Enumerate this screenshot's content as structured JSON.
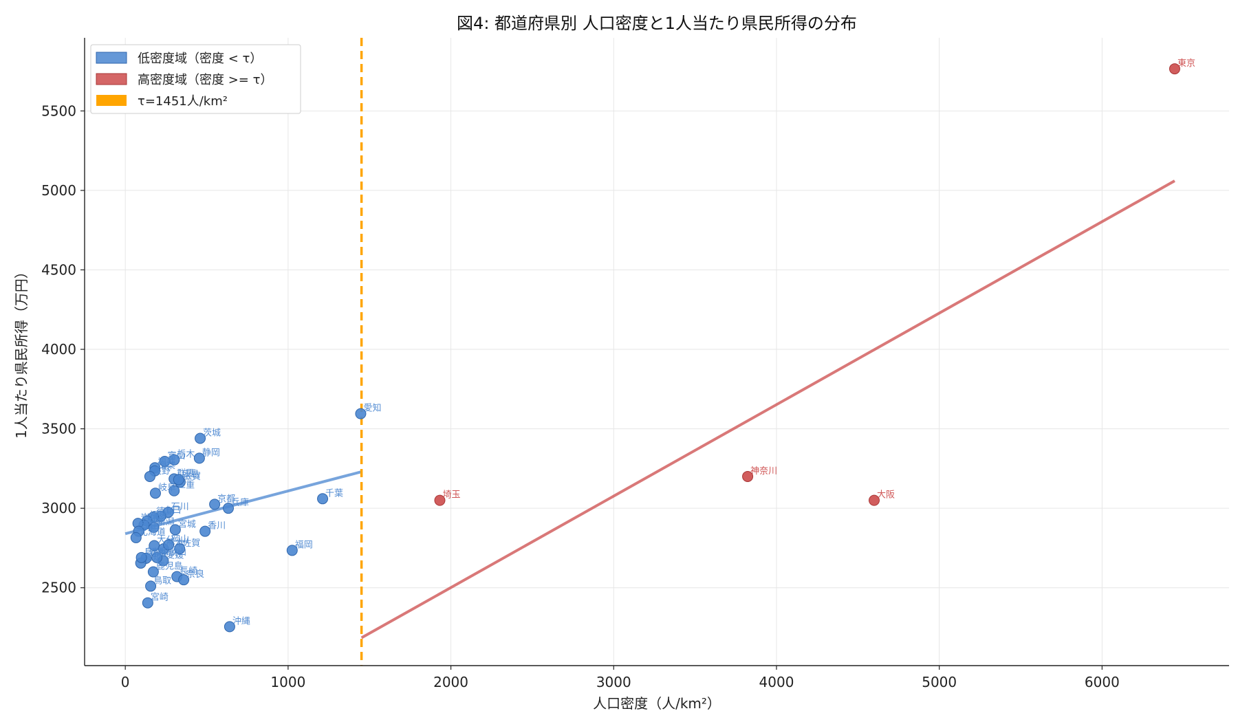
{
  "chart_data": {
    "type": "scatter",
    "title": "図4: 都道府県別 人口密度と1人当たり県民所得の分布",
    "xlabel": "人口密度（人/km²）",
    "ylabel": "1人当たり県民所得（万円）",
    "xlim": [
      -250,
      6780
    ],
    "ylim": [
      2010,
      5960
    ],
    "x_ticks": [
      0,
      1000,
      2000,
      3000,
      4000,
      5000,
      6000
    ],
    "y_ticks": [
      2500,
      3000,
      3500,
      4000,
      4500,
      5000,
      5500
    ],
    "grid": true,
    "legend_position": "top-left",
    "threshold": {
      "value": 1451,
      "label": "τ=1451人/km²",
      "color": "#FFA500"
    },
    "series": [
      {
        "name": "低密度域（密度 < τ）",
        "color": "#4A86D0",
        "points": [
          {
            "label": "愛知",
            "x": 1446,
            "y": 3595
          },
          {
            "label": "茨城",
            "x": 460,
            "y": 3440
          },
          {
            "label": "栃木",
            "x": 301,
            "y": 3305
          },
          {
            "label": "静岡",
            "x": 455,
            "y": 3315
          },
          {
            "label": "千葉",
            "x": 1212,
            "y": 3060
          },
          {
            "label": "兵庫",
            "x": 633,
            "y": 3000
          },
          {
            "label": "京都",
            "x": 549,
            "y": 3025
          },
          {
            "label": "香川",
            "x": 490,
            "y": 2855
          },
          {
            "label": "宮城",
            "x": 307,
            "y": 2865
          },
          {
            "label": "石川",
            "x": 264,
            "y": 2975
          },
          {
            "label": "滋賀",
            "x": 337,
            "y": 3165
          },
          {
            "label": "三重",
            "x": 300,
            "y": 3110
          },
          {
            "label": "群馬",
            "x": 300,
            "y": 3185
          },
          {
            "label": "富山",
            "x": 242,
            "y": 3295
          },
          {
            "label": "福井",
            "x": 182,
            "y": 3255
          },
          {
            "label": "山梨",
            "x": 181,
            "y": 3235
          },
          {
            "label": "長野",
            "x": 151,
            "y": 3200
          },
          {
            "label": "岐阜",
            "x": 185,
            "y": 3095
          },
          {
            "label": "広島",
            "x": 328,
            "y": 3180
          },
          {
            "label": "山口",
            "x": 217,
            "y": 2950
          },
          {
            "label": "徳島",
            "x": 173,
            "y": 2945
          },
          {
            "label": "新潟",
            "x": 175,
            "y": 2880
          },
          {
            "label": "福島",
            "x": 133,
            "y": 2920
          },
          {
            "label": "山形",
            "x": 115,
            "y": 2895
          },
          {
            "label": "岩手",
            "x": 78,
            "y": 2905
          },
          {
            "label": "秋田",
            "x": 82,
            "y": 2855
          },
          {
            "label": "北海道",
            "x": 66,
            "y": 2815
          },
          {
            "label": "大分",
            "x": 178,
            "y": 2765
          },
          {
            "label": "熊本",
            "x": 235,
            "y": 2745
          },
          {
            "label": "佐賀",
            "x": 334,
            "y": 2745
          },
          {
            "label": "愛媛",
            "x": 233,
            "y": 2670
          },
          {
            "label": "岡山",
            "x": 266,
            "y": 2770
          },
          {
            "label": "和歌山",
            "x": 194,
            "y": 2690
          },
          {
            "label": "青森",
            "x": 127,
            "y": 2685
          },
          {
            "label": "高知",
            "x": 95,
            "y": 2655
          },
          {
            "label": "島根",
            "x": 99,
            "y": 2690
          },
          {
            "label": "鹿児島",
            "x": 172,
            "y": 2600
          },
          {
            "label": "長崎",
            "x": 317,
            "y": 2570
          },
          {
            "label": "奈良",
            "x": 359,
            "y": 2550
          },
          {
            "label": "鳥取",
            "x": 156,
            "y": 2510
          },
          {
            "label": "宮崎",
            "x": 138,
            "y": 2405
          },
          {
            "label": "福岡",
            "x": 1025,
            "y": 2735
          },
          {
            "label": "沖縄",
            "x": 641,
            "y": 2255
          }
        ],
        "fit": {
          "x0": 0,
          "y0": 2840,
          "x1": 1451,
          "y1": 3230
        }
      },
      {
        "name": "高密度域（密度 >= τ）",
        "color": "#CC4B4B",
        "points": [
          {
            "label": "東京",
            "x": 6446,
            "y": 5765
          },
          {
            "label": "神奈川",
            "x": 3823,
            "y": 3200
          },
          {
            "label": "大阪",
            "x": 4600,
            "y": 3050
          },
          {
            "label": "埼玉",
            "x": 1932,
            "y": 3050
          }
        ],
        "fit": {
          "x0": 1451,
          "y0": 2185,
          "x1": 6446,
          "y1": 5060
        }
      }
    ]
  }
}
